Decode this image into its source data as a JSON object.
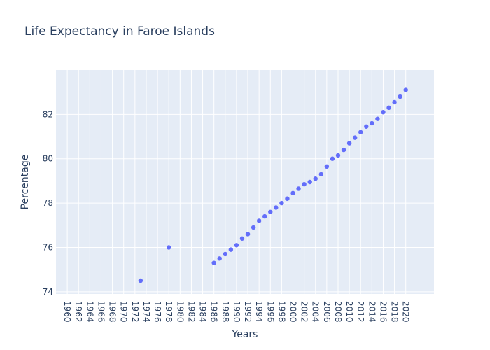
{
  "chart_data": {
    "type": "scatter",
    "title": "Life Expectancy in Faroe Islands",
    "xlabel": "Years",
    "ylabel": "Percentage",
    "xlim": [
      1958,
      2025
    ],
    "ylim": [
      73.9,
      84.0
    ],
    "x_ticks": [
      "1960",
      "1962",
      "1964",
      "1966",
      "1968",
      "1970",
      "1972",
      "1974",
      "1976",
      "1978",
      "1980",
      "1982",
      "1984",
      "1986",
      "1988",
      "1990",
      "1992",
      "1994",
      "1996",
      "1998",
      "2000",
      "2002",
      "2004",
      "2006",
      "2008",
      "2010",
      "2012",
      "2014",
      "2016",
      "2018",
      "2020"
    ],
    "y_ticks": [
      "74",
      "76",
      "78",
      "80",
      "82"
    ],
    "grid": true,
    "marker_color": "#636efa",
    "plot_bg": "#e5ecf6",
    "points": [
      {
        "x": 1973,
        "y": 74.5
      },
      {
        "x": 1978,
        "y": 76.0
      },
      {
        "x": 1986,
        "y": 75.3
      },
      {
        "x": 1987,
        "y": 75.5
      },
      {
        "x": 1988,
        "y": 75.7
      },
      {
        "x": 1989,
        "y": 75.9
      },
      {
        "x": 1990,
        "y": 76.1
      },
      {
        "x": 1991,
        "y": 76.4
      },
      {
        "x": 1992,
        "y": 76.6
      },
      {
        "x": 1993,
        "y": 76.9
      },
      {
        "x": 1994,
        "y": 77.2
      },
      {
        "x": 1995,
        "y": 77.4
      },
      {
        "x": 1996,
        "y": 77.6
      },
      {
        "x": 1997,
        "y": 77.8
      },
      {
        "x": 1998,
        "y": 78.0
      },
      {
        "x": 1999,
        "y": 78.2
      },
      {
        "x": 2000,
        "y": 78.45
      },
      {
        "x": 2001,
        "y": 78.65
      },
      {
        "x": 2002,
        "y": 78.85
      },
      {
        "x": 2003,
        "y": 78.95
      },
      {
        "x": 2004,
        "y": 79.1
      },
      {
        "x": 2005,
        "y": 79.3
      },
      {
        "x": 2006,
        "y": 79.65
      },
      {
        "x": 2007,
        "y": 80.0
      },
      {
        "x": 2008,
        "y": 80.15
      },
      {
        "x": 2009,
        "y": 80.4
      },
      {
        "x": 2010,
        "y": 80.7
      },
      {
        "x": 2011,
        "y": 80.95
      },
      {
        "x": 2012,
        "y": 81.2
      },
      {
        "x": 2013,
        "y": 81.45
      },
      {
        "x": 2014,
        "y": 81.6
      },
      {
        "x": 2015,
        "y": 81.8
      },
      {
        "x": 2016,
        "y": 82.1
      },
      {
        "x": 2017,
        "y": 82.3
      },
      {
        "x": 2018,
        "y": 82.55
      },
      {
        "x": 2019,
        "y": 82.8
      },
      {
        "x": 2020,
        "y": 83.1
      }
    ]
  }
}
